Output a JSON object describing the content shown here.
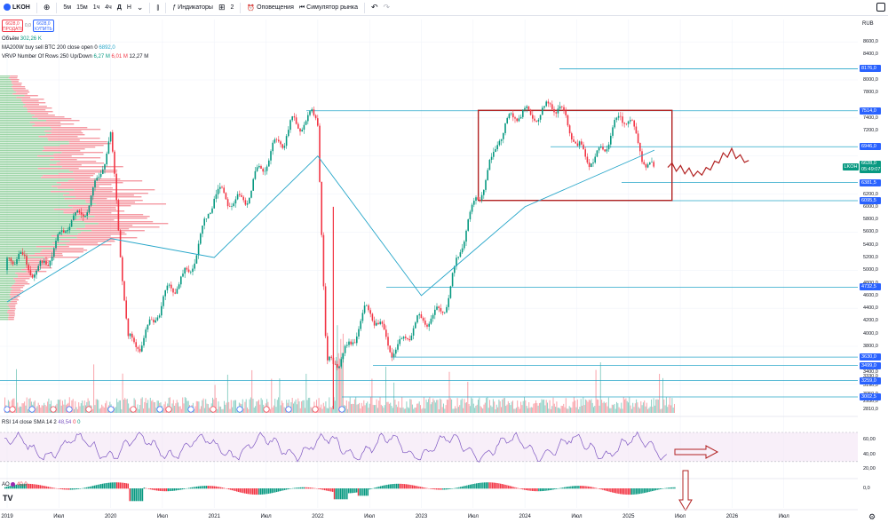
{
  "toolbar": {
    "symbol": "LKOH",
    "intervals": [
      "5м",
      "15м",
      "1ч",
      "4ч",
      "Д",
      "Н"
    ],
    "active_interval": "Д",
    "indicators_label": "Индикаторы",
    "templates_count": "2",
    "alerts_label": "Оповещения",
    "replay_label": "Симулятор рынка"
  },
  "legend": {
    "sell_price": "6628,0",
    "sell_label": "ПРОДАТЬ",
    "spread": "0,0",
    "buy_price": "6628,0",
    "buy_label": "КУПИТЬ",
    "volume_label": "Объём",
    "volume_value": "302,26 K",
    "ma_label": "MA200W buy sell BTC 200 close open 0",
    "ma_value": "6892,0",
    "vrvp_label": "VRVP Number Of Rows 250 Up/Down",
    "vrvp_up": "6,27 M",
    "vrvp_down": "6,01 M",
    "vrvp_total": "12,27 M",
    "rsi_label": "RSI 14 close SMA 14 2",
    "rsi_value1": "48,54",
    "rsi_value2": "0",
    "rsi_value3": "0",
    "ao_label": "AO",
    "ao_value": "40,0"
  },
  "axis": {
    "unit": "RUB",
    "ticks": [
      "8600,0",
      "8400,0",
      "8000,0",
      "7800,0",
      "7400,0",
      "7200,0",
      "7000,0",
      "6800,0",
      "6600,0",
      "6400,0",
      "6200,0",
      "6000,0",
      "5800,0",
      "5600,0",
      "5400,0",
      "5200,0",
      "5000,0",
      "4800,0",
      "4600,0",
      "4400,0",
      "4200,0",
      "4000,0",
      "3800,0",
      "3600,0",
      "3400,0",
      "3330,0",
      "3190,0",
      "3050,0",
      "2930,0",
      "2810,0"
    ],
    "level_labels": [
      "8176,0",
      "7514,0",
      "6946,0",
      "6381,5",
      "6095,5",
      "4732,5",
      "3630,0",
      "3499,0",
      "3259,0",
      "3002,5"
    ],
    "current_symbol": "LKOH",
    "current_price": "6628,0",
    "countdown": "05:49:07",
    "rsi_ticks": [
      "60,00",
      "40,00",
      "20,00"
    ],
    "ao_ticks": [
      "0,0"
    ]
  },
  "time_axis": [
    "2019",
    "Июл",
    "2020",
    "Июл",
    "2021",
    "Июл",
    "2022",
    "Июл",
    "2023",
    "Июл",
    "2024",
    "Июл",
    "2025",
    "Июл",
    "2026",
    "Июл"
  ],
  "chart_data": {
    "type": "line",
    "symbol": "LKOH",
    "interval": "1D",
    "ylim": [
      2750,
      8700
    ],
    "series": [
      {
        "name": "LKOH",
        "x": [
          "2019-01",
          "2019-07",
          "2020-01",
          "2020-03",
          "2020-07",
          "2021-01",
          "2021-07",
          "2021-10",
          "2022-01",
          "2022-02",
          "2022-03",
          "2022-07",
          "2022-10",
          "2023-01",
          "2023-04",
          "2023-07",
          "2023-10",
          "2024-01",
          "2024-04",
          "2024-07",
          "2024-10",
          "2025-01",
          "2025-03",
          "2025-04"
        ],
        "values": [
          5000,
          5300,
          6900,
          3900,
          4300,
          6000,
          6500,
          7500,
          7200,
          3400,
          3700,
          4200,
          3900,
          4000,
          4700,
          5800,
          7300,
          7300,
          7800,
          6800,
          7000,
          7300,
          6900,
          6628
        ]
      },
      {
        "name": "MA200W",
        "x": [
          "2019-01",
          "2020-01",
          "2021-01",
          "2022-01",
          "2023-01",
          "2024-01",
          "2025-04"
        ],
        "values": [
          4500,
          5500,
          5200,
          6800,
          4600,
          6000,
          6892
        ]
      }
    ],
    "horizontal_levels": [
      8176.0,
      7514.0,
      6946.0,
      6381.5,
      6095.5,
      4732.5,
      3630.0,
      3499.0,
      3259.0,
      3002.5
    ],
    "rsi": {
      "value": 48.54,
      "bands": [
        30,
        70
      ],
      "ylim": [
        20,
        70
      ]
    },
    "annotations": [
      "range box 2023-07..2025-04 (6100–7520)",
      "forecast zigzag 6500–6950",
      "arrow right on RSI",
      "arrow down on AO"
    ]
  },
  "colors": {
    "up": "#089981",
    "down": "#f23645",
    "level": "#2962ff",
    "ma": "#26a6c9",
    "box": "#b22222",
    "rsi": "#7e57c2"
  }
}
